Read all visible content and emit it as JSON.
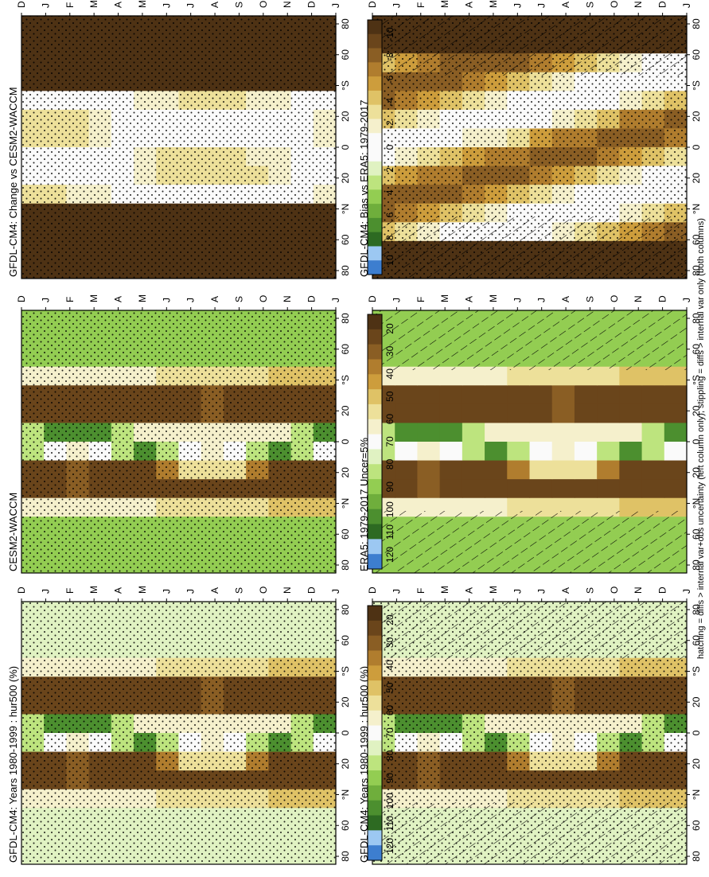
{
  "footer": "hatching = diffs > internal var+obs uncertainty (left column only); stippling = diffs > internal var only (both columns)",
  "lat_ticks": [
    "80",
    "60",
    "°N",
    "20",
    "0",
    "20",
    "°S",
    "60",
    "80"
  ],
  "month_ticks": [
    "D",
    "J",
    "F",
    "M",
    "A",
    "M",
    "J",
    "J",
    "A",
    "S",
    "O",
    "N",
    "D",
    "J"
  ],
  "colorbars": {
    "absolute": {
      "labels": [
        "120",
        "110",
        "100",
        "90",
        "80",
        "70",
        "60",
        "50",
        "40",
        "30",
        "20"
      ],
      "colors": [
        "#3d7ecf",
        "#9cc8f2",
        "#2d6a22",
        "#4c8f2f",
        "#6fae3c",
        "#93cd52",
        "#bde47e",
        "#e0f2c2",
        "#fafafa",
        "#f5f0cc",
        "#ede09a",
        "#dfc266",
        "#cd9d3c",
        "#b07d2e",
        "#8a5e24",
        "#6a451b",
        "#4e3214"
      ]
    },
    "difference": {
      "labels": [
        "10",
        "8",
        "6",
        "4",
        "2",
        "0",
        "-2",
        "-4",
        "-6",
        "-8",
        "-10"
      ],
      "colors": [
        "#3d7ecf",
        "#9cc8f2",
        "#2d6a22",
        "#4c8f2f",
        "#6fae3c",
        "#93cd52",
        "#bde47e",
        "#e0f2c2",
        "#fafafa",
        "#fafafa",
        "#f5f0cc",
        "#ede09a",
        "#dfc266",
        "#cd9d3c",
        "#b07d2e",
        "#8a5e24",
        "#6a451b",
        "#4e3214"
      ]
    }
  },
  "chart_data": [
    {
      "type": "heatmap",
      "title": "GFDL-CM4: Years 1980-1999 : hur500 (%)",
      "x": "month (D–J)",
      "y": "latitude (80N–80S)",
      "colorbar": "absolute",
      "hatching": true,
      "stippling": true,
      "position": "top-left",
      "pattern": "abs_model"
    },
    {
      "type": "heatmap",
      "title": "ERA5: 1979-2017 Uncer=5%",
      "x": "month (D–J)",
      "y": "latitude (80N–80S)",
      "colorbar": "absolute",
      "hatching": true,
      "stippling": false,
      "position": "middle-left",
      "pattern": "abs_obs"
    },
    {
      "type": "heatmap",
      "title": "GFDL-CM4: Bias vs ERA5: 1979-2017",
      "x": "month (D–J)",
      "y": "latitude (80N–80S)",
      "colorbar": "difference",
      "hatching": true,
      "stippling": true,
      "position": "bottom-left",
      "pattern": "bias"
    },
    {
      "type": "heatmap",
      "title": "GFDL-CM4: Years 1980-1999 : hur500 (%)",
      "x": "month (D–J)",
      "y": "latitude (80N–80S)",
      "colorbar": "absolute",
      "hatching": false,
      "stippling": true,
      "position": "top-right",
      "pattern": "abs_model"
    },
    {
      "type": "heatmap",
      "title": "CESM2-WACCM",
      "x": "month (D–J)",
      "y": "latitude (80N–80S)",
      "colorbar": "absolute",
      "hatching": false,
      "stippling": true,
      "position": "middle-right",
      "pattern": "abs_obs"
    },
    {
      "type": "heatmap",
      "title": "GFDL-CM4: Change vs CESM2-WACCM",
      "x": "month (D–J)",
      "y": "latitude (80N–80S)",
      "colorbar": "difference",
      "hatching": false,
      "stippling": true,
      "position": "bottom-right",
      "pattern": "change"
    }
  ]
}
